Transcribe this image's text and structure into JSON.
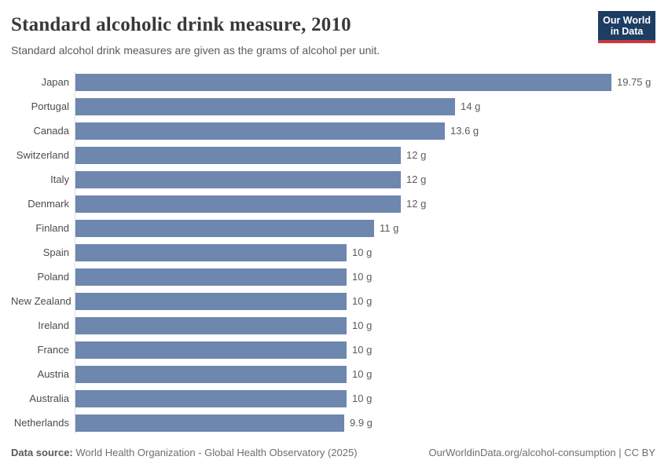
{
  "header": {
    "title": "Standard alcoholic drink measure, 2010",
    "subtitle": "Standard alcohol drink measures are given as the grams of alcohol per unit.",
    "logo_line1": "Our World",
    "logo_line2": "in Data"
  },
  "chart_data": {
    "type": "bar",
    "orientation": "horizontal",
    "title": "Standard alcoholic drink measure, 2010",
    "subtitle": "Standard alcohol drink measures are given as the grams of alcohol per unit.",
    "unit": "g",
    "categories": [
      "Japan",
      "Portugal",
      "Canada",
      "Switzerland",
      "Italy",
      "Denmark",
      "Finland",
      "Spain",
      "Poland",
      "New Zealand",
      "Ireland",
      "France",
      "Austria",
      "Australia",
      "Netherlands"
    ],
    "values": [
      19.75,
      14,
      13.6,
      12,
      12,
      12,
      11,
      10,
      10,
      10,
      10,
      10,
      10,
      10,
      9.9
    ],
    "value_labels": [
      "19.75 g",
      "14 g",
      "13.6 g",
      "12 g",
      "12 g",
      "12 g",
      "11 g",
      "10 g",
      "10 g",
      "10 g",
      "10 g",
      "10 g",
      "10 g",
      "10 g",
      "9.9 g"
    ],
    "xlim": [
      0,
      19.75
    ],
    "grid": false,
    "legend": false,
    "bar_color": "#6d87ae"
  },
  "colors": {
    "bar": "#6d87ae",
    "logo_navy": "#1d3d63",
    "logo_red": "#c9393d",
    "axis_line": "#dcdcdc"
  },
  "footer": {
    "source_label": "Data source:",
    "source_text": "World Health Organization - Global Health Observatory (2025)",
    "credit": "OurWorldinData.org/alcohol-consumption | CC BY"
  }
}
